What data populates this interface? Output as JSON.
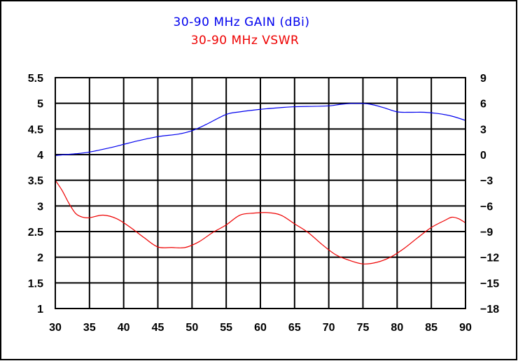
{
  "chart_data": {
    "type": "line",
    "title": "30-90 MHz GAIN (dBi)",
    "subtitle": "30-90 MHz VSWR",
    "xlabel": "",
    "ylabel": "",
    "grid": true,
    "legend": "none",
    "x_ticks": [
      "30",
      "35",
      "40",
      "45",
      "50",
      "55",
      "60",
      "65",
      "70",
      "75",
      "80",
      "85",
      "90"
    ],
    "xlim": [
      30,
      90
    ],
    "y_left_ticks": [
      "5.5",
      "5",
      "4.5",
      "4",
      "3.5",
      "3",
      "2.5",
      "2",
      "1.5",
      "1"
    ],
    "y_left_lim": [
      1,
      5.5
    ],
    "y_right_ticks": [
      "9",
      "6",
      "3",
      "0",
      "-3",
      "-6",
      "-9",
      "-12",
      "-15",
      "-18"
    ],
    "y_right_lim": [
      -18,
      9
    ],
    "series": [
      {
        "axis": "right",
        "color": "#0000ee",
        "x": [
          30,
          33,
          35,
          38,
          40,
          42,
          45,
          48,
          50,
          52,
          55,
          57,
          60,
          63,
          65,
          68,
          70,
          72,
          74,
          76,
          78,
          80,
          82,
          84,
          86,
          88,
          90
        ],
        "y": [
          -0.1,
          0.1,
          0.3,
          0.8,
          1.2,
          1.6,
          2.1,
          2.4,
          2.8,
          3.5,
          4.7,
          5.0,
          5.3,
          5.5,
          5.6,
          5.65,
          5.7,
          5.9,
          6.0,
          5.9,
          5.5,
          5.0,
          4.95,
          4.95,
          4.8,
          4.5,
          4.0
        ]
      },
      {
        "axis": "left",
        "color": "#ee0000",
        "x": [
          30,
          31,
          32,
          33,
          34,
          35,
          37,
          39,
          41,
          43,
          45,
          47,
          49,
          51,
          53,
          55,
          57,
          59,
          61,
          63,
          65,
          67,
          69,
          71,
          73,
          75,
          77,
          79,
          81,
          83,
          85,
          87,
          88,
          89,
          90
        ],
        "y": [
          3.5,
          3.3,
          3.05,
          2.85,
          2.78,
          2.77,
          2.82,
          2.75,
          2.58,
          2.38,
          2.2,
          2.19,
          2.19,
          2.3,
          2.48,
          2.63,
          2.82,
          2.86,
          2.87,
          2.82,
          2.65,
          2.48,
          2.25,
          2.05,
          1.94,
          1.87,
          1.9,
          2.0,
          2.17,
          2.38,
          2.58,
          2.72,
          2.78,
          2.75,
          2.67
        ]
      }
    ]
  }
}
